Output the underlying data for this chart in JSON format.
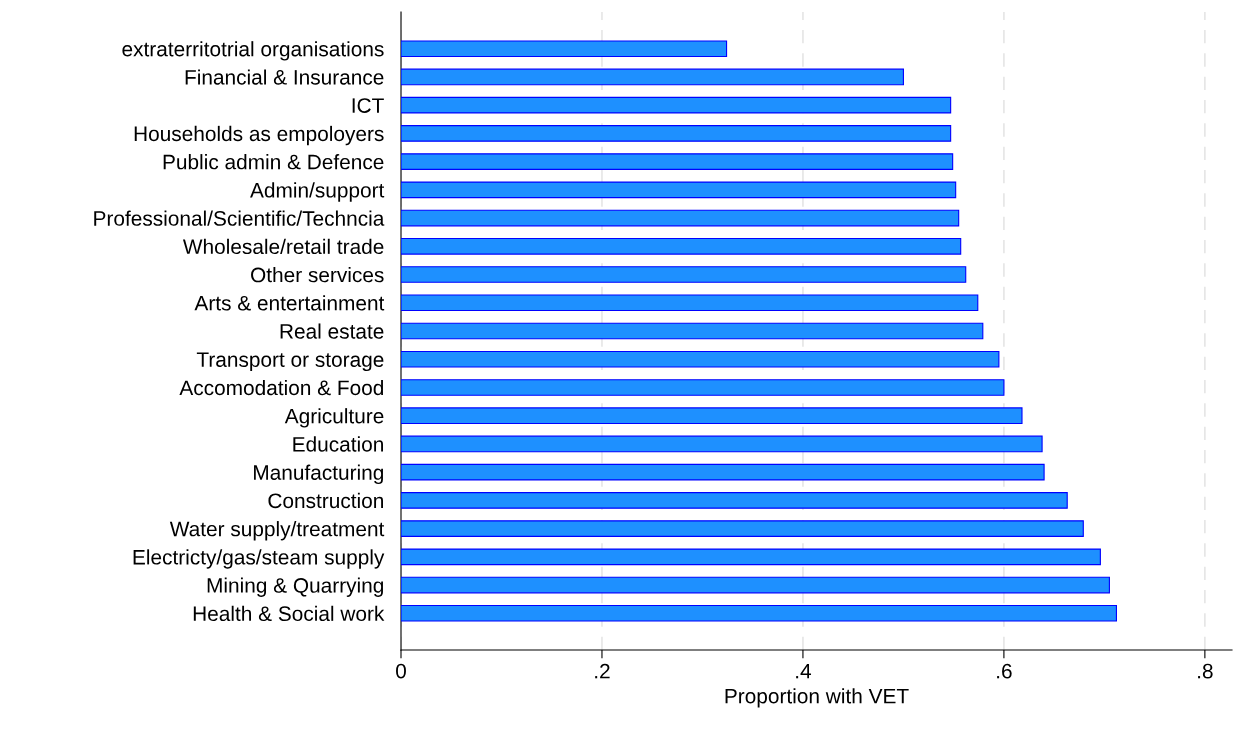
{
  "chart_data": {
    "type": "bar",
    "orientation": "horizontal",
    "xlabel": "Proportion with VET",
    "categories": [
      "extraterritotrial organisations",
      "Financial & Insurance",
      "ICT",
      "Households as empoloyers",
      "Public admin & Defence",
      "Admin/support",
      "Professional/Scientific/Techncia",
      "Wholesale/retail trade",
      "Other services",
      "Arts & entertainment",
      "Real estate",
      "Transport or storage",
      "Accomodation & Food",
      "Agriculture",
      "Education",
      "Manufacturing",
      "Construction",
      "Water supply/treatment",
      "Electricty/gas/steam supply",
      "Mining & Quarrying",
      "Health & Social work"
    ],
    "values": [
      0.324,
      0.5,
      0.547,
      0.547,
      0.549,
      0.552,
      0.555,
      0.557,
      0.562,
      0.574,
      0.579,
      0.595,
      0.6,
      0.618,
      0.638,
      0.64,
      0.663,
      0.679,
      0.696,
      0.705,
      0.712
    ],
    "color": "#1e90ff",
    "xlim": [
      0,
      0.827
    ],
    "xticks": [
      0,
      {
        "value": 0.2,
        "label": ".2"
      },
      {
        "value": 0.4,
        "label": ".4"
      },
      {
        "value": 0.6,
        "label": ".6"
      },
      {
        "value": 0.8,
        "label": ".8"
      }
    ],
    "grid": "x"
  }
}
